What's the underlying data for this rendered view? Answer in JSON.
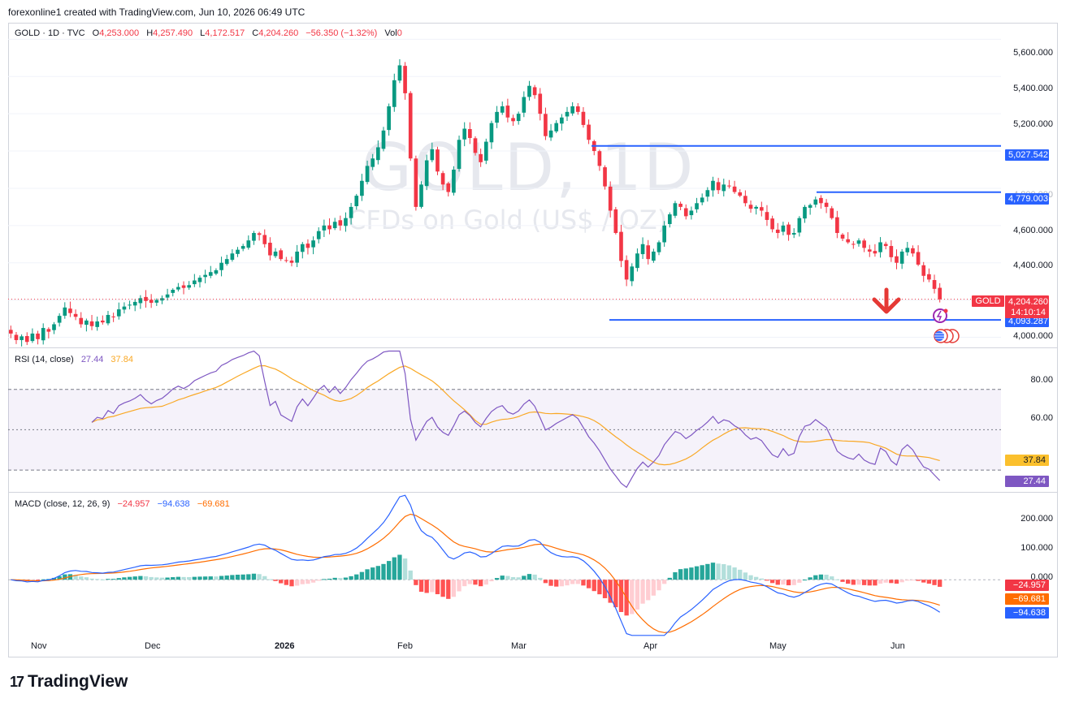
{
  "caption": "forexonline1 created with TradingView.com, Jun 10, 2026 06:49 UTC",
  "legend": {
    "symbol": "GOLD · 1D · TVC",
    "o_label": "O",
    "o_value": "4,253.000",
    "h_label": "H",
    "h_value": "4,257.490",
    "l_label": "L",
    "l_value": "4,172.517",
    "c_label": "C",
    "c_value": "4,204.260",
    "change": "−56.350 (−1.32%)",
    "vol_label": "Vol",
    "vol_value": "0"
  },
  "watermark": {
    "line1": "GOLD, 1D",
    "line2": "CFDs on Gold (US$ / OZ)"
  },
  "price_axis": [
    "5,600.000",
    "5,400.000",
    "5,200.000",
    "4,600.000",
    "4,400.000",
    "4,000.000"
  ],
  "price_axis_partial": "4,800.000",
  "tags": {
    "level1": "5,027.542",
    "level2": "4,779.003",
    "level3": "4,093.287",
    "symbol_tag": "GOLD",
    "price": "4,204.260",
    "countdown": "14:10:14"
  },
  "rsi": {
    "title": "RSI (14, close)",
    "rsi_value": "27.44",
    "ma_value": "37.84",
    "axis": [
      "80.00",
      "60.00"
    ],
    "axis_partial": "40.00",
    "tag_rsi": "27.44",
    "tag_ma": "37.84"
  },
  "macd": {
    "title": "MACD (close, 12, 26, 9)",
    "hist_value": "−24.957",
    "macd_value": "−94.638",
    "signal_value": "−69.681",
    "axis": [
      "200.000",
      "100.000",
      "0.000"
    ],
    "tag_hist": "−24.957",
    "tag_signal": "−69.681",
    "tag_macd": "−94.638"
  },
  "x_axis": [
    "Nov",
    "Dec",
    "2026",
    "Feb",
    "Mar",
    "Apr",
    "May",
    "Jun"
  ],
  "footer": {
    "logo_mark": "17",
    "logo_text": "TradingView"
  },
  "colors": {
    "up": "#089981",
    "down": "#f23645",
    "level": "#2962ff",
    "rsi": "#7e57c2",
    "rsi_ma": "#f9a825",
    "macd": "#2962ff",
    "signal": "#ff6d00",
    "arrow": "#e53935"
  },
  "chart_data": {
    "type": "candlestick",
    "symbol": "GOLD",
    "timeframe": "1D",
    "price_ylim": [
      3950,
      5680
    ],
    "horizontal_levels": [
      5027.542,
      4779.003,
      4093.287
    ],
    "current_price": 4204.26,
    "closes": [
      4020,
      3985,
      4005,
      3975,
      4020,
      3990,
      4050,
      4030,
      4070,
      4115,
      4160,
      4130,
      4110,
      4070,
      4090,
      4060,
      4085,
      4080,
      4120,
      4110,
      4150,
      4165,
      4175,
      4190,
      4210,
      4195,
      4185,
      4200,
      4210,
      4230,
      4255,
      4270,
      4265,
      4280,
      4305,
      4320,
      4335,
      4350,
      4360,
      4400,
      4420,
      4450,
      4470,
      4490,
      4520,
      4560,
      4550,
      4500,
      4440,
      4460,
      4420,
      4410,
      4400,
      4460,
      4500,
      4480,
      4520,
      4570,
      4600,
      4580,
      4620,
      4600,
      4640,
      4700,
      4760,
      4840,
      4920,
      4960,
      5020,
      5110,
      5240,
      5380,
      5460,
      5310,
      4960,
      4700,
      4820,
      4950,
      5010,
      4890,
      4820,
      4780,
      4900,
      5060,
      5120,
      5070,
      4990,
      4940,
      5050,
      5150,
      5210,
      5240,
      5180,
      5160,
      5200,
      5290,
      5350,
      5300,
      5200,
      5080,
      5110,
      5150,
      5180,
      5210,
      5240,
      5210,
      5140,
      5060,
      5000,
      4920,
      4810,
      4680,
      4560,
      4410,
      4310,
      4380,
      4450,
      4500,
      4420,
      4460,
      4510,
      4600,
      4660,
      4720,
      4700,
      4650,
      4680,
      4720,
      4750,
      4790,
      4840,
      4790,
      4820,
      4810,
      4780,
      4760,
      4720,
      4690,
      4700,
      4680,
      4630,
      4580,
      4560,
      4600,
      4550,
      4560,
      4640,
      4700,
      4710,
      4740,
      4720,
      4700,
      4640,
      4560,
      4530,
      4510,
      4500,
      4520,
      4480,
      4460,
      4450,
      4510,
      4490,
      4430,
      4400,
      4460,
      4480,
      4450,
      4390,
      4330,
      4310,
      4260,
      4204
    ],
    "rsi_ylim": [
      20,
      90
    ],
    "rsi_levels": [
      70,
      50,
      30
    ],
    "rsi_last": 27.44,
    "rsi_ma_last": 37.84,
    "macd_ylim": [
      -160,
      240
    ],
    "macd_last": -94.638,
    "signal_last": -69.681,
    "hist_last": -24.957
  }
}
